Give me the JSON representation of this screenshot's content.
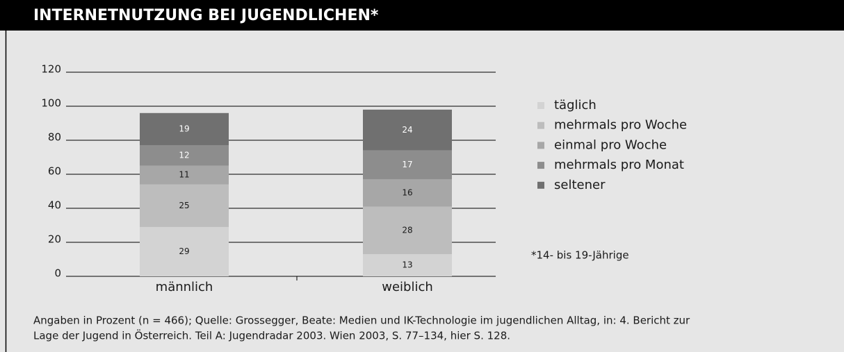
{
  "chart_data": {
    "type": "stacked_bar",
    "title": "INTERNETNUTZUNG BEI JUGENDLICHEN*",
    "categories": [
      "männlich",
      "weiblich"
    ],
    "series": [
      {
        "name": "täglich",
        "color": "#d3d3d3",
        "values": [
          29,
          13
        ]
      },
      {
        "name": "mehrmals pro Woche",
        "color": "#bdbdbd",
        "values": [
          25,
          28
        ]
      },
      {
        "name": "einmal pro Woche",
        "color": "#a7a7a7",
        "values": [
          11,
          16
        ]
      },
      {
        "name": "mehrmals pro Monat",
        "color": "#8d8d8d",
        "values": [
          12,
          17
        ]
      },
      {
        "name": "seltener",
        "color": "#707070",
        "values": [
          19,
          24
        ]
      }
    ],
    "ylim": [
      0,
      120
    ],
    "yticks": [
      0,
      20,
      40,
      60,
      80,
      100,
      120
    ],
    "grid": true,
    "footnote": "*14- bis 19-Jährige",
    "note": [
      "Angaben in Prozent (n = 466); Quelle: Grossegger, Beate: Medien und IK-Technologie im jugendlichen Alltag, in: 4. Bericht zur",
      "Lage der Jugend in Österreich. Teil A: Jugendradar 2003. Wien 2003, S. 77–134, hier S. 128."
    ]
  }
}
